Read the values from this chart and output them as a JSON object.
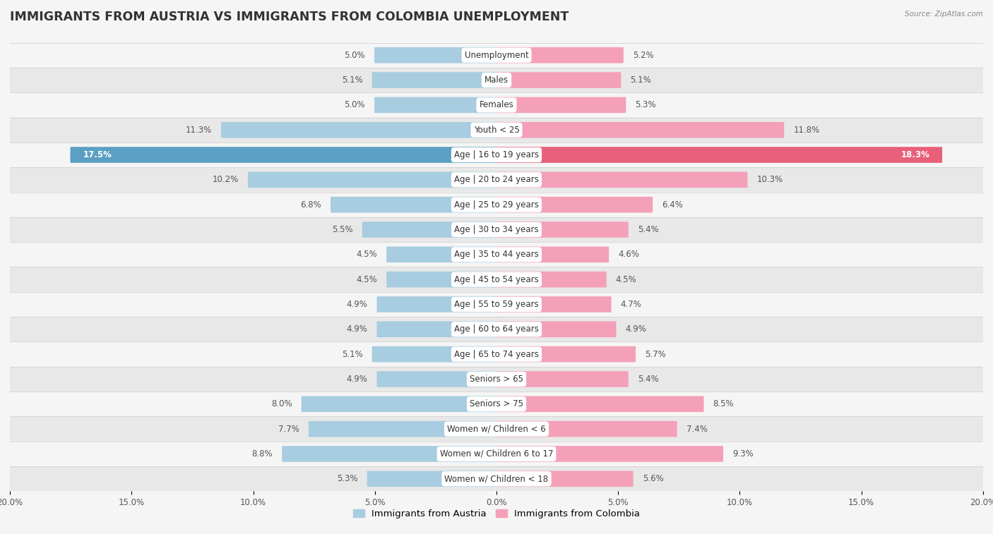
{
  "title": "IMMIGRANTS FROM AUSTRIA VS IMMIGRANTS FROM COLOMBIA UNEMPLOYMENT",
  "source": "Source: ZipAtlas.com",
  "categories": [
    "Unemployment",
    "Males",
    "Females",
    "Youth < 25",
    "Age | 16 to 19 years",
    "Age | 20 to 24 years",
    "Age | 25 to 29 years",
    "Age | 30 to 34 years",
    "Age | 35 to 44 years",
    "Age | 45 to 54 years",
    "Age | 55 to 59 years",
    "Age | 60 to 64 years",
    "Age | 65 to 74 years",
    "Seniors > 65",
    "Seniors > 75",
    "Women w/ Children < 6",
    "Women w/ Children 6 to 17",
    "Women w/ Children < 18"
  ],
  "austria_values": [
    5.0,
    5.1,
    5.0,
    11.3,
    17.5,
    10.2,
    6.8,
    5.5,
    4.5,
    4.5,
    4.9,
    4.9,
    5.1,
    4.9,
    8.0,
    7.7,
    8.8,
    5.3
  ],
  "colombia_values": [
    5.2,
    5.1,
    5.3,
    11.8,
    18.3,
    10.3,
    6.4,
    5.4,
    4.6,
    4.5,
    4.7,
    4.9,
    5.7,
    5.4,
    8.5,
    7.4,
    9.3,
    5.6
  ],
  "austria_color": "#a8cce0",
  "colombia_color": "#f4a0b8",
  "austria_label": "Immigrants from Austria",
  "colombia_label": "Immigrants from Colombia",
  "bg_light": "#f5f5f5",
  "bg_dark": "#e8e8e8",
  "max_value": 20.0,
  "title_fontsize": 12.5,
  "label_fontsize": 8.5,
  "value_fontsize": 8.5,
  "bar_height": 0.6,
  "special_row_idx": 4,
  "special_austria_color": "#5b9fc4",
  "special_colombia_color": "#e8607a"
}
